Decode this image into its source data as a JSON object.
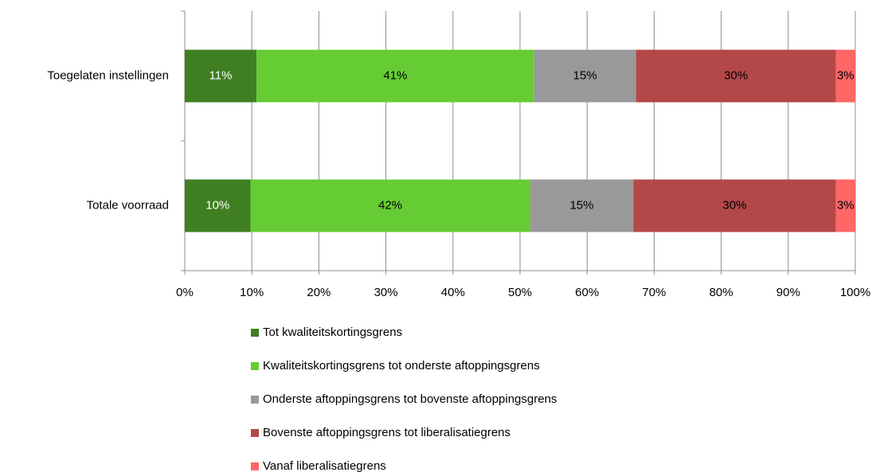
{
  "chart_data": {
    "type": "stacked-bar-horizontal",
    "categories": [
      "Toegelaten instellingen",
      "Totale voorraad"
    ],
    "series": [
      {
        "name": "Tot kwaliteitskortingsgrens",
        "color": "#3f7f22",
        "values": [
          10.7,
          9.8
        ],
        "value_labels": [
          "11%",
          "10%"
        ]
      },
      {
        "name": "Kwaliteitskortingsgrens tot onderste aftoppingsgrens",
        "color": "#66cc33",
        "values": [
          41.4,
          41.7
        ],
        "value_labels": [
          "41%",
          "42%"
        ]
      },
      {
        "name": "Onderste aftoppingsgrens tot bovenste aftoppingsgrens",
        "color": "#999999",
        "values": [
          15.2,
          15.4
        ],
        "value_labels": [
          "15%",
          "15%"
        ]
      },
      {
        "name": "Bovenste aftoppingsgrens tot liberalisatiegrens",
        "color": "#b34848",
        "values": [
          29.8,
          30.2
        ],
        "value_labels": [
          "30%",
          "30%"
        ]
      },
      {
        "name": "Vanaf liberalisatiegrens",
        "color": "#ff6666",
        "values": [
          2.9,
          2.9
        ],
        "value_labels": [
          "3%",
          "3%"
        ]
      }
    ],
    "xlim": [
      0,
      100
    ],
    "xticks": [
      {
        "value": 0,
        "label": "0%"
      },
      {
        "value": 10,
        "label": "10%"
      },
      {
        "value": 20,
        "label": "20%"
      },
      {
        "value": 30,
        "label": "30%"
      },
      {
        "value": 40,
        "label": "40%"
      },
      {
        "value": 50,
        "label": "50%"
      },
      {
        "value": 60,
        "label": "60%"
      },
      {
        "value": 70,
        "label": "70%"
      },
      {
        "value": 80,
        "label": "80%"
      },
      {
        "value": 90,
        "label": "90%"
      },
      {
        "value": 100,
        "label": "100%"
      }
    ],
    "grid": true
  }
}
